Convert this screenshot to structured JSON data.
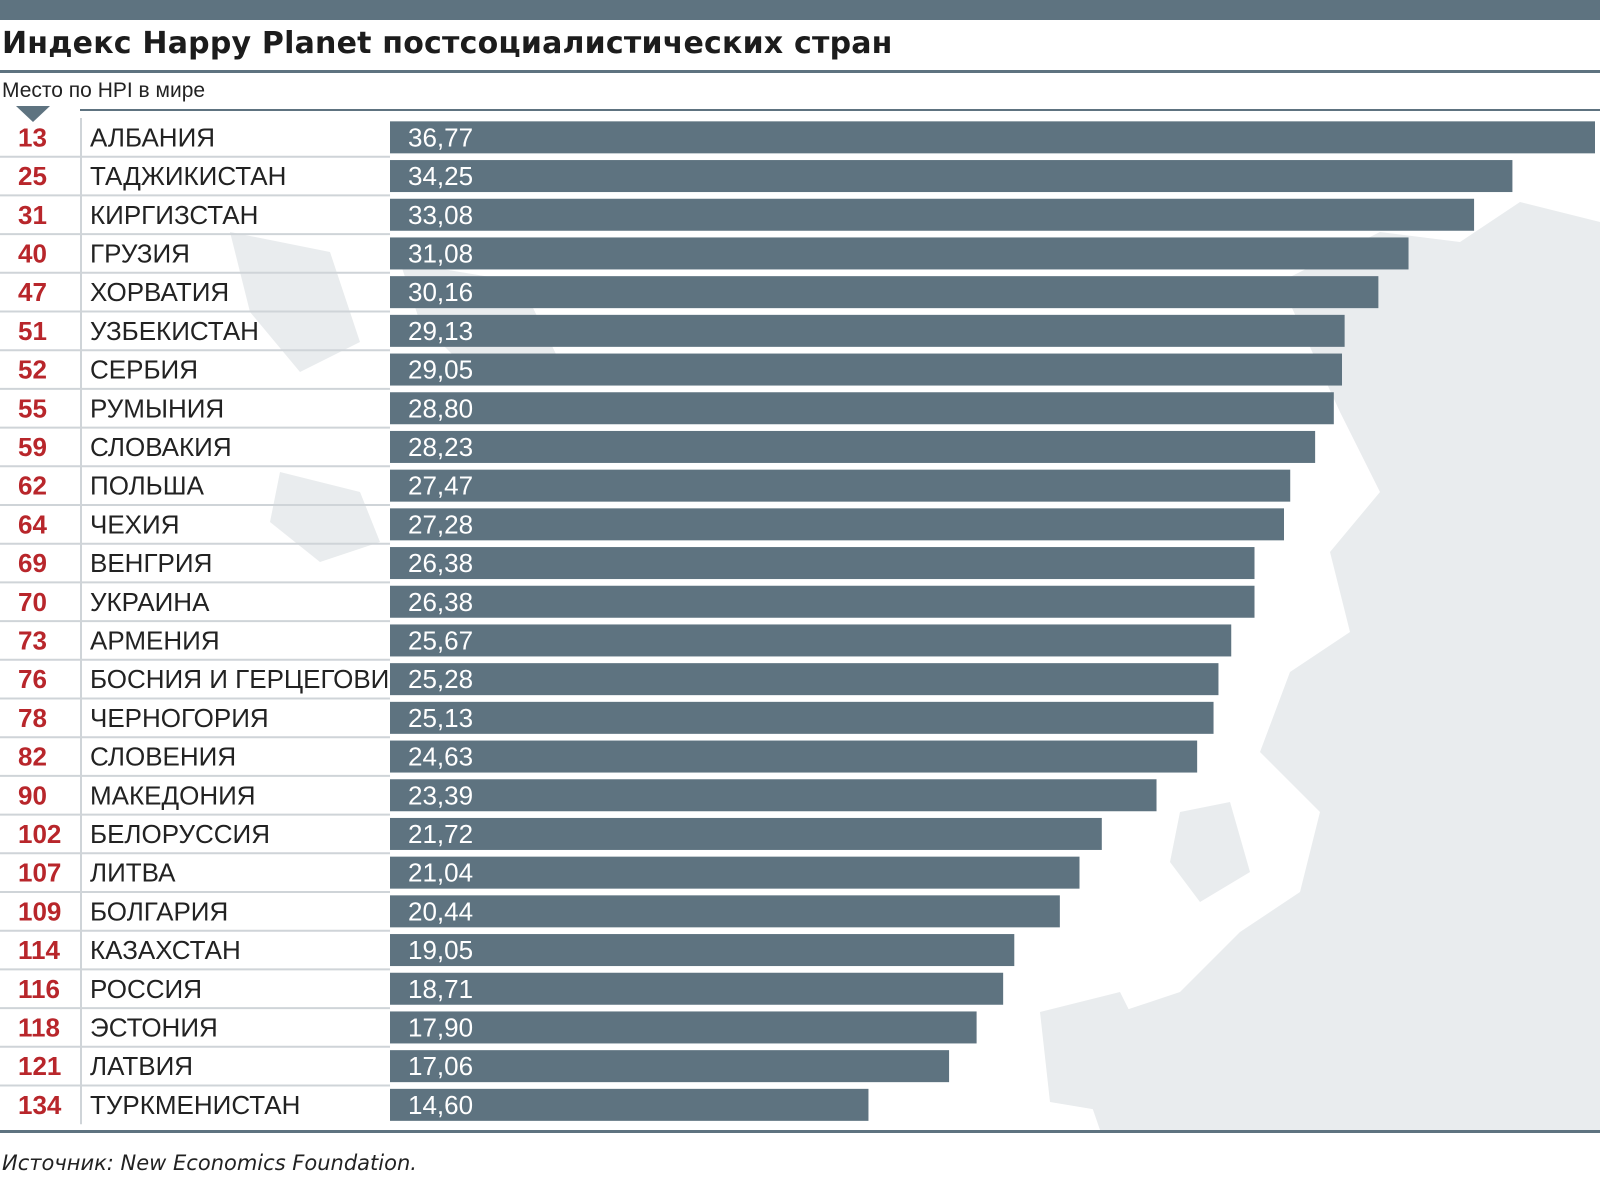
{
  "colors": {
    "bar": "#5e7380",
    "rank": "#b8262b",
    "rule": "#5e7380",
    "row_line": "#cfd4d8",
    "map": "#e9ecee"
  },
  "header": {
    "title": "Индекс Happy Planet постсоциалистических стран",
    "subtitle": "Место по HPI в мире"
  },
  "footer": {
    "source": "Источник: New Economics Foundation."
  },
  "chart_data": {
    "type": "bar",
    "orientation": "horizontal",
    "title": "Индекс Happy Planet постсоциалистических стран",
    "rank_label": "Место по HPI в мире",
    "xlim": [
      0,
      36.77
    ],
    "grid": false,
    "legend": "none",
    "rows": [
      {
        "rank": "13",
        "country": "АЛБАНИЯ",
        "value": 36.77,
        "label": "36,77"
      },
      {
        "rank": "25",
        "country": "ТАДЖИКИСТАН",
        "value": 34.25,
        "label": "34,25"
      },
      {
        "rank": "31",
        "country": "КИРГИЗСТАН",
        "value": 33.08,
        "label": "33,08"
      },
      {
        "rank": "40",
        "country": "ГРУЗИЯ",
        "value": 31.08,
        "label": "31,08"
      },
      {
        "rank": "47",
        "country": "ХОРВАТИЯ",
        "value": 30.16,
        "label": "30,16"
      },
      {
        "rank": "51",
        "country": "УЗБЕКИСТАН",
        "value": 29.13,
        "label": "29,13"
      },
      {
        "rank": "52",
        "country": "СЕРБИЯ",
        "value": 29.05,
        "label": "29,05"
      },
      {
        "rank": "55",
        "country": "РУМЫНИЯ",
        "value": 28.8,
        "label": "28,80"
      },
      {
        "rank": "59",
        "country": "СЛОВАКИЯ",
        "value": 28.23,
        "label": "28,23"
      },
      {
        "rank": "62",
        "country": "ПОЛЬША",
        "value": 27.47,
        "label": "27,47"
      },
      {
        "rank": "64",
        "country": "ЧЕХИЯ",
        "value": 27.28,
        "label": "27,28"
      },
      {
        "rank": "69",
        "country": "ВЕНГРИЯ",
        "value": 26.38,
        "label": "26,38"
      },
      {
        "rank": "70",
        "country": "УКРАИНА",
        "value": 26.38,
        "label": "26,38"
      },
      {
        "rank": "73",
        "country": "АРМЕНИЯ",
        "value": 25.67,
        "label": "25,67"
      },
      {
        "rank": "76",
        "country": "БОСНИЯ И ГЕРЦЕГОВИНА",
        "value": 25.28,
        "label": "25,28"
      },
      {
        "rank": "78",
        "country": "ЧЕРНОГОРИЯ",
        "value": 25.13,
        "label": "25,13"
      },
      {
        "rank": "82",
        "country": "СЛОВЕНИЯ",
        "value": 24.63,
        "label": "24,63"
      },
      {
        "rank": "90",
        "country": "МАКЕДОНИЯ",
        "value": 23.39,
        "label": "23,39"
      },
      {
        "rank": "102",
        "country": "БЕЛОРУССИЯ",
        "value": 21.72,
        "label": "21,72"
      },
      {
        "rank": "107",
        "country": "ЛИТВА",
        "value": 21.04,
        "label": "21,04"
      },
      {
        "rank": "109",
        "country": "БОЛГАРИЯ",
        "value": 20.44,
        "label": "20,44"
      },
      {
        "rank": "114",
        "country": "КАЗАХСТАН",
        "value": 19.05,
        "label": "19,05"
      },
      {
        "rank": "116",
        "country": "РОССИЯ",
        "value": 18.71,
        "label": "18,71"
      },
      {
        "rank": "118",
        "country": "ЭСТОНИЯ",
        "value": 17.9,
        "label": "17,90"
      },
      {
        "rank": "121",
        "country": "ЛАТВИЯ",
        "value": 17.06,
        "label": "17,06"
      },
      {
        "rank": "134",
        "country": "ТУРКМЕНИСТАН",
        "value": 14.6,
        "label": "14,60"
      }
    ]
  }
}
